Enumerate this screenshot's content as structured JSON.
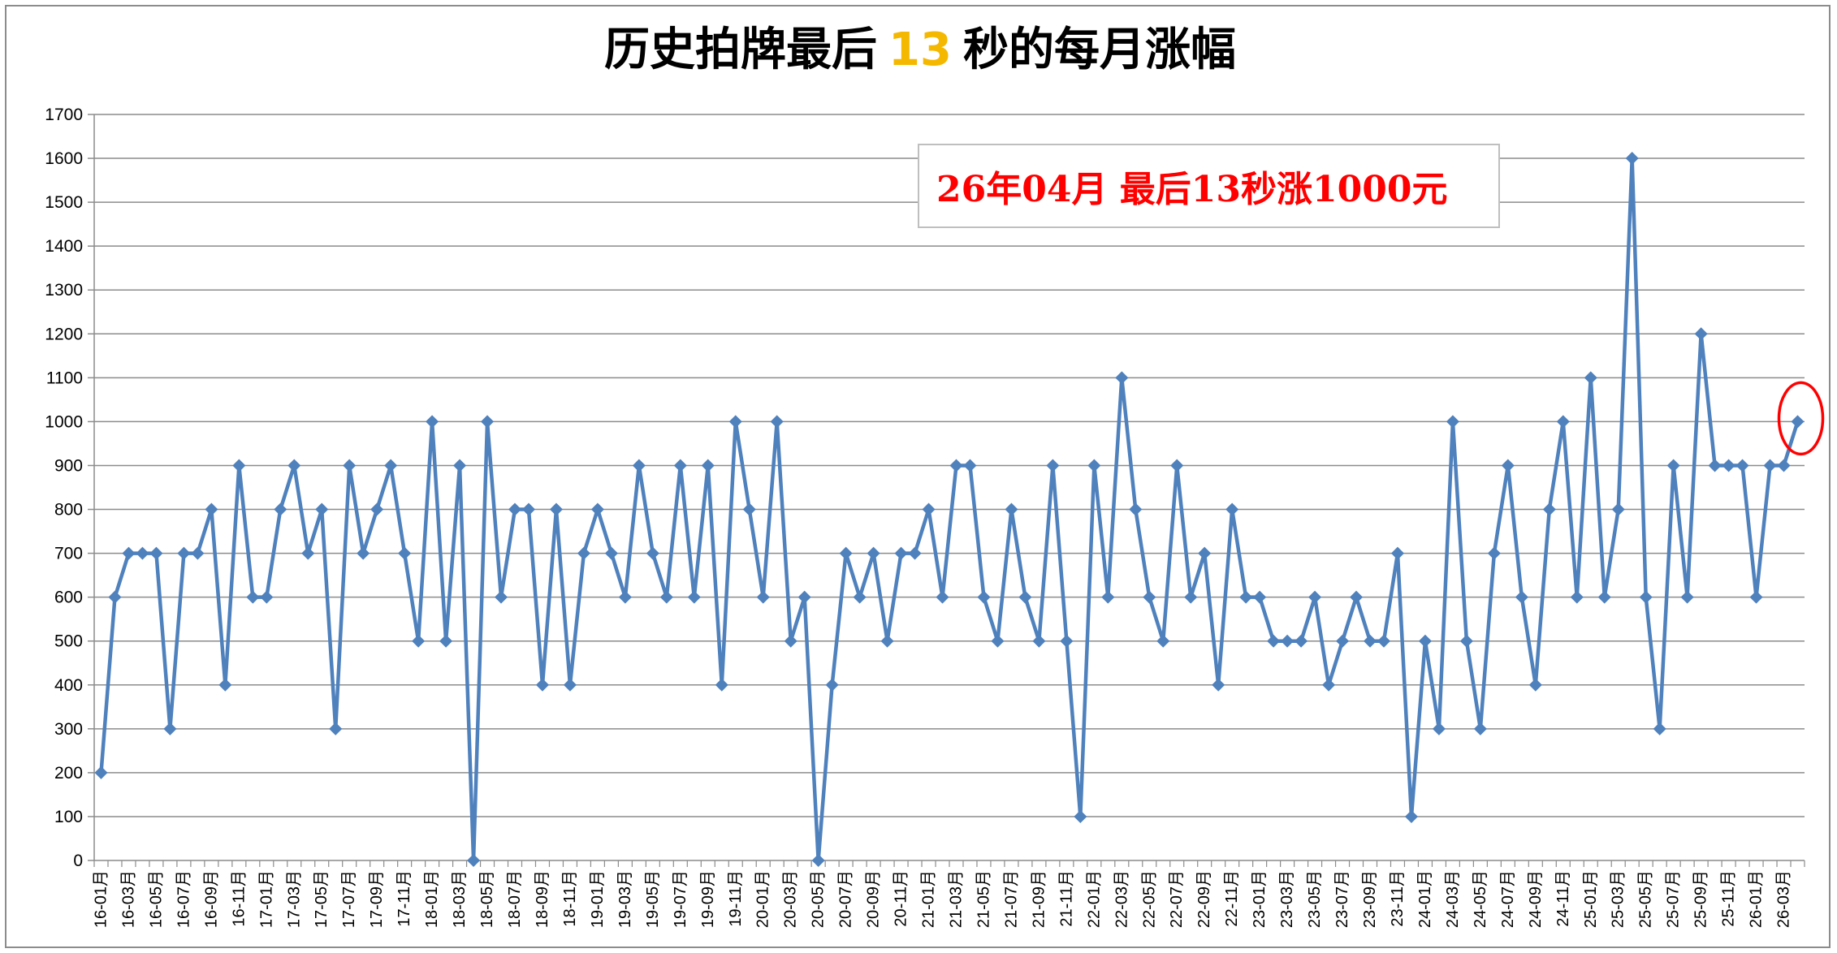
{
  "chart_data": {
    "type": "line",
    "title_parts": [
      "历史拍牌最后",
      "13",
      "秒的每月涨幅"
    ],
    "title_highlight_color": "#f5b800",
    "annotation": "26年04月 最后13秒涨1000元",
    "annotation_color": "#ff0000",
    "series_color": "#4f81bd",
    "highlight_circle_color": "#ff0000",
    "ylim": [
      0,
      1700
    ],
    "ytick_step": 100,
    "grid": true,
    "x_tick_labels": [
      "16-01月",
      "16-03月",
      "16-05月",
      "16-07月",
      "16-09月",
      "16-11月",
      "17-01月",
      "17-03月",
      "17-05月",
      "17-07月",
      "17-09月",
      "17-11月",
      "18-01月",
      "18-03月",
      "18-05月",
      "18-07月",
      "18-09月",
      "18-11月",
      "19-01月",
      "19-03月",
      "19-05月",
      "19-07月",
      "19-09月",
      "19-11月",
      "20-01月",
      "20-03月",
      "20-05月",
      "20-07月",
      "20-09月",
      "20-11月",
      "21-01月",
      "21-03月",
      "21-05月",
      "21-07月",
      "21-09月",
      "21-11月",
      "22-01月",
      "22-03月",
      "22-05月",
      "22-07月",
      "22-09月",
      "22-11月",
      "23-01月",
      "23-03月",
      "23-05月",
      "23-07月",
      "23-09月",
      "23-11月",
      "24-01月",
      "24-03月",
      "24-05月",
      "24-07月",
      "24-09月",
      "24-11月",
      "25-01月",
      "25-03月",
      "25-05月",
      "25-07月",
      "25-09月",
      "25-11月",
      "26-01月",
      "26-03月"
    ],
    "values": [
      200,
      600,
      700,
      700,
      700,
      300,
      700,
      700,
      800,
      400,
      900,
      600,
      600,
      800,
      900,
      700,
      800,
      300,
      900,
      700,
      800,
      900,
      700,
      500,
      1000,
      500,
      900,
      0,
      1000,
      600,
      800,
      800,
      400,
      800,
      400,
      700,
      800,
      700,
      600,
      900,
      700,
      600,
      900,
      600,
      900,
      400,
      1000,
      800,
      600,
      1000,
      500,
      600,
      0,
      400,
      700,
      600,
      700,
      500,
      700,
      700,
      800,
      600,
      900,
      900,
      600,
      500,
      800,
      600,
      500,
      900,
      500,
      100,
      900,
      600,
      1100,
      800,
      600,
      500,
      900,
      600,
      700,
      400,
      800,
      600,
      600,
      500,
      500,
      500,
      600,
      400,
      500,
      600,
      500,
      500,
      700,
      100,
      500,
      300,
      1000,
      500,
      300,
      700,
      900,
      600,
      400,
      800,
      1000,
      600,
      1100,
      600,
      800,
      1600,
      600,
      300,
      900,
      600,
      1200,
      900,
      900,
      900,
      600,
      900,
      900,
      1000
    ]
  }
}
